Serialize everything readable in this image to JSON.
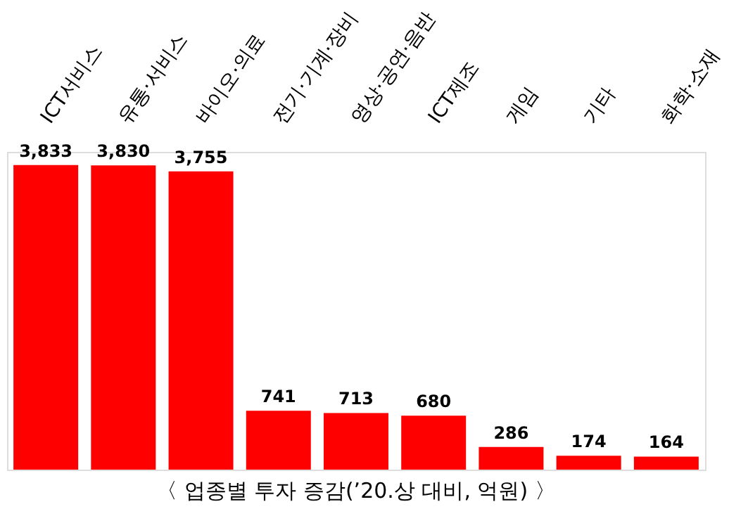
{
  "chart_data": {
    "type": "bar",
    "title": "〈 업종별 투자 증감(’20.상 대비, 억원) 〉",
    "categories": [
      "ICT서비스",
      "유통·서비스",
      "바이오·의료",
      "전기·기계·장비",
      "영상·공연·음반",
      "ICT제조",
      "게임",
      "기타",
      "화학·소재"
    ],
    "values": [
      3833,
      3830,
      3755,
      741,
      713,
      680,
      286,
      174,
      164
    ],
    "value_labels": [
      "3,833",
      "3,830",
      "3,755",
      "741",
      "713",
      "680",
      "286",
      "174",
      "164"
    ],
    "color": "#ff0000",
    "grid": false
  }
}
